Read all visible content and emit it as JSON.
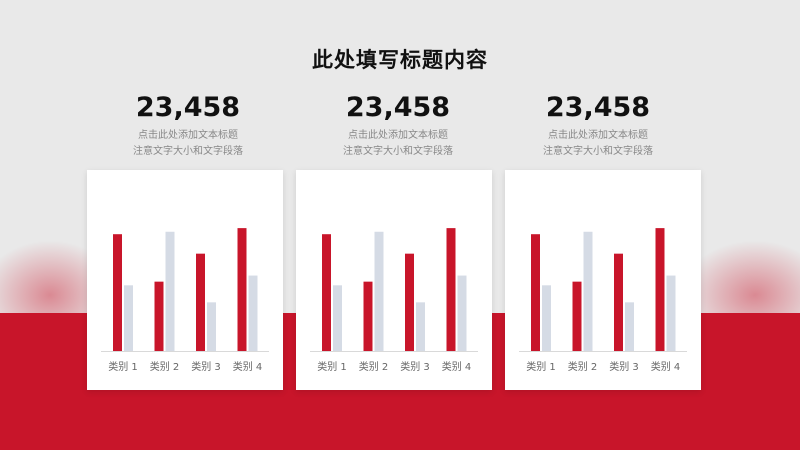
{
  "title": "此处填写标题内容",
  "columns": [
    {
      "value": "23,458",
      "desc_line1": "点击此处添加文本标题",
      "desc_line2": "注意文字大小和文字段落"
    },
    {
      "value": "23,458",
      "desc_line1": "点击此处添加文本标题",
      "desc_line2": "注意文字大小和文字段落"
    },
    {
      "value": "23,458",
      "desc_line1": "点击此处添加文本标题",
      "desc_line2": "注意文字大小和文字段落"
    }
  ],
  "colors": {
    "accent": "#c8152a",
    "secondary": "#d5dbe5",
    "background": "#e9e9e9"
  },
  "chart_data": [
    {
      "type": "bar",
      "categories": [
        "类别 1",
        "类别 2",
        "类别 3",
        "类别 4"
      ],
      "series": [
        {
          "values": [
            96,
            57,
            80,
            101
          ]
        },
        {
          "values": [
            54,
            98,
            40,
            62
          ]
        }
      ],
      "ylim": [
        0,
        120
      ],
      "grid": false,
      "legend": false
    },
    {
      "type": "bar",
      "categories": [
        "类别 1",
        "类别 2",
        "类别 3",
        "类别 4"
      ],
      "series": [
        {
          "values": [
            96,
            57,
            80,
            101
          ]
        },
        {
          "values": [
            54,
            98,
            40,
            62
          ]
        }
      ],
      "ylim": [
        0,
        120
      ],
      "grid": false,
      "legend": false
    },
    {
      "type": "bar",
      "categories": [
        "类别 1",
        "类别 2",
        "类别 3",
        "类别 4"
      ],
      "series": [
        {
          "values": [
            96,
            57,
            80,
            101
          ]
        },
        {
          "values": [
            54,
            98,
            40,
            62
          ]
        }
      ],
      "ylim": [
        0,
        120
      ],
      "grid": false,
      "legend": false
    }
  ]
}
